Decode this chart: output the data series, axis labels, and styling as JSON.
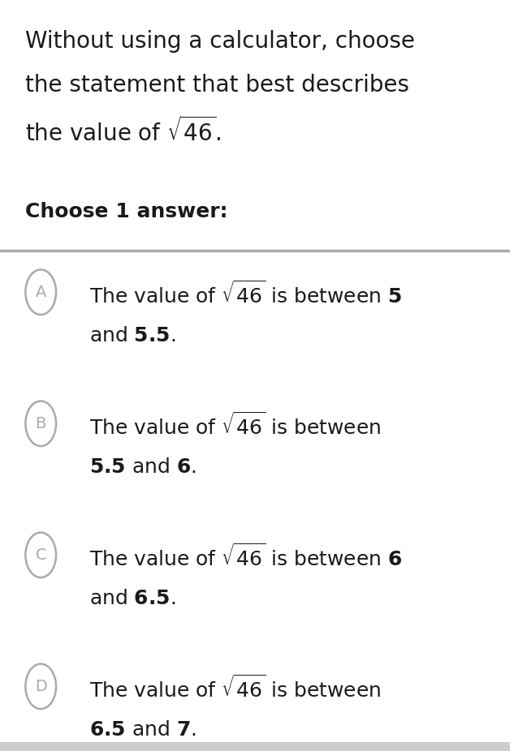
{
  "bg_color": "#ffffff",
  "title_lines": [
    "Without using a calculator, choose",
    "the statement that best describes",
    "the value of $\\sqrt{46}$."
  ],
  "choose_label": "Choose 1 answer:",
  "options": [
    {
      "letter": "A",
      "line1": "The value of $\\sqrt{46}$ is between $\\mathbf{5}$",
      "line2": "and $\\mathbf{5.5}$."
    },
    {
      "letter": "B",
      "line1": "The value of $\\sqrt{46}$ is between",
      "line2": "$\\mathbf{5.5}$ and $\\mathbf{6}$."
    },
    {
      "letter": "C",
      "line1": "The value of $\\sqrt{46}$ is between $\\mathbf{6}$",
      "line2": "and $\\mathbf{6.5}$."
    },
    {
      "letter": "D",
      "line1": "The value of $\\sqrt{46}$ is between",
      "line2": "$\\mathbf{6.5}$ and $\\mathbf{7}$."
    }
  ],
  "separator_color": "#aaaaaa",
  "circle_color": "#aaaaaa",
  "text_color": "#1a1a1a",
  "title_fontsize": 20,
  "choose_fontsize": 18,
  "option_fontsize": 18,
  "letter_fontsize": 14
}
